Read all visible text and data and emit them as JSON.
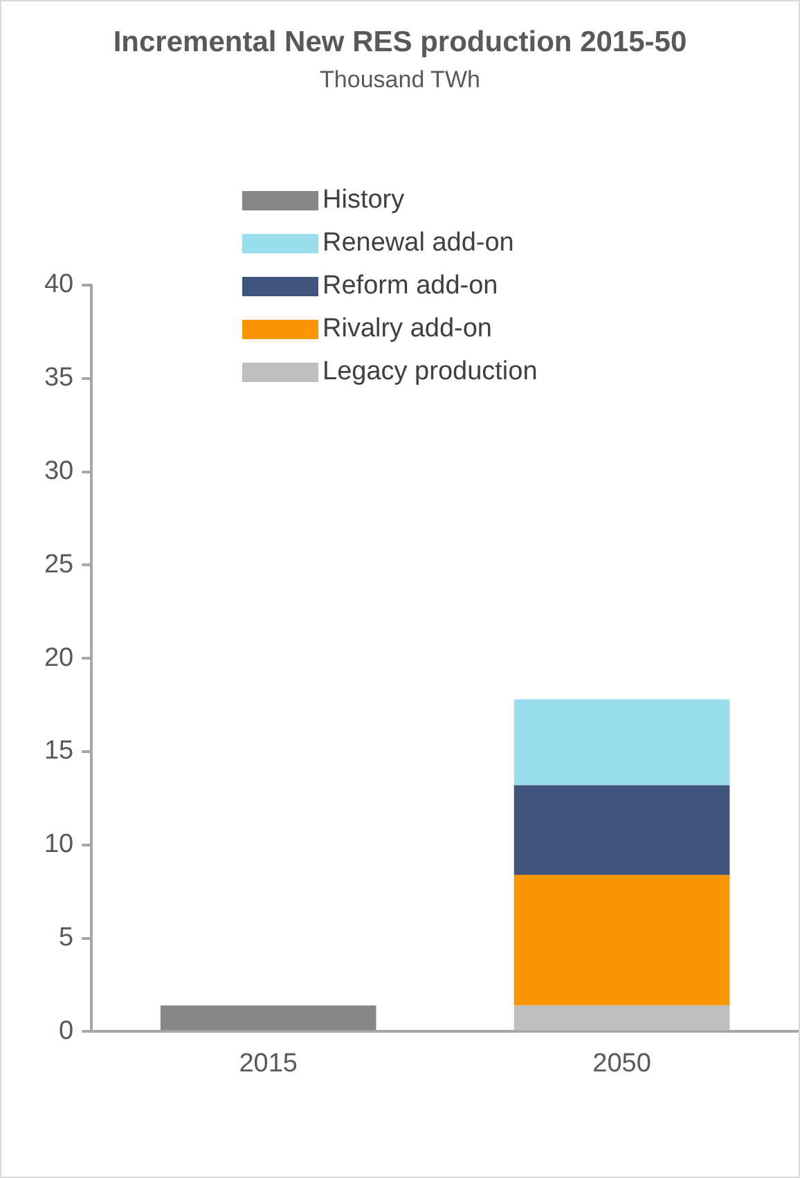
{
  "chart_data": {
    "type": "bar",
    "title": "Incremental New RES production 2015-50",
    "subtitle": "Thousand TWh",
    "categories": [
      "2015",
      "2050"
    ],
    "stacked": true,
    "grid": false,
    "legend": "top",
    "series": [
      {
        "name": "History",
        "color": "#878787",
        "values": [
          1.4,
          null
        ]
      },
      {
        "name": "Legacy production",
        "color": "#bfbfbf",
        "values": [
          null,
          1.4
        ]
      },
      {
        "name": "Rivalry add-on",
        "color": "#f89500",
        "values": [
          null,
          7.0
        ]
      },
      {
        "name": "Reform add-on",
        "color": "#3f547c",
        "values": [
          null,
          4.8
        ]
      },
      {
        "name": "Renewal add-on",
        "color": "#99dcec",
        "values": [
          null,
          4.6
        ]
      }
    ],
    "ylim": [
      0,
      40
    ],
    "yticks": [
      0,
      5,
      10,
      15,
      20,
      25,
      30,
      35,
      40
    ]
  }
}
